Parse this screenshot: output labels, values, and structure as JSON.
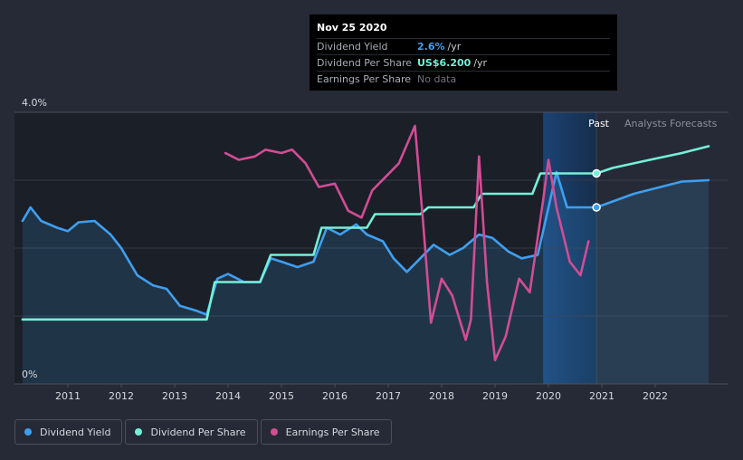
{
  "tooltip": {
    "date": "Nov 25 2020",
    "rows": [
      {
        "label": "Dividend Yield",
        "value": "2.6%",
        "unit": "/yr",
        "color": "#3f9fef"
      },
      {
        "label": "Dividend Per Share",
        "value": "US$6.200",
        "unit": "/yr",
        "color": "#74f0d8"
      },
      {
        "label": "Earnings Per Share",
        "value": "No data",
        "unit": "",
        "color": "#6f737c"
      }
    ]
  },
  "legend": [
    {
      "label": "Dividend Yield",
      "color": "#3f9fef"
    },
    {
      "label": "Dividend Per Share",
      "color": "#74f0d8"
    },
    {
      "label": "Earnings Per Share",
      "color": "#d14d94"
    }
  ],
  "chart_data": {
    "type": "line",
    "y_top_label": "4.0%",
    "y_bottom_label": "0%",
    "ylim": [
      0,
      4.0
    ],
    "xlim": [
      2010.0,
      2023.0
    ],
    "x_ticks": [
      "2011",
      "2012",
      "2013",
      "2014",
      "2015",
      "2016",
      "2017",
      "2018",
      "2019",
      "2020",
      "2021",
      "2022"
    ],
    "regions": {
      "past_label": "Past",
      "forecast_label": "Analysts Forecasts",
      "now": 2020.9
    },
    "series": [
      {
        "name": "Dividend Yield",
        "color": "#3f9fef",
        "area": true,
        "points": [
          [
            2010.15,
            2.4
          ],
          [
            2010.3,
            2.6
          ],
          [
            2010.5,
            2.4
          ],
          [
            2010.8,
            2.3
          ],
          [
            2011.0,
            2.25
          ],
          [
            2011.2,
            2.38
          ],
          [
            2011.5,
            2.4
          ],
          [
            2011.8,
            2.2
          ],
          [
            2012.0,
            2.0
          ],
          [
            2012.3,
            1.6
          ],
          [
            2012.6,
            1.45
          ],
          [
            2012.85,
            1.4
          ],
          [
            2013.1,
            1.15
          ],
          [
            2013.4,
            1.08
          ],
          [
            2013.6,
            1.02
          ],
          [
            2013.8,
            1.55
          ],
          [
            2014.0,
            1.62
          ],
          [
            2014.3,
            1.5
          ],
          [
            2014.6,
            1.5
          ],
          [
            2014.8,
            1.85
          ],
          [
            2015.0,
            1.8
          ],
          [
            2015.3,
            1.72
          ],
          [
            2015.6,
            1.8
          ],
          [
            2015.85,
            2.3
          ],
          [
            2016.1,
            2.2
          ],
          [
            2016.4,
            2.35
          ],
          [
            2016.6,
            2.2
          ],
          [
            2016.9,
            2.1
          ],
          [
            2017.1,
            1.85
          ],
          [
            2017.35,
            1.65
          ],
          [
            2017.6,
            1.85
          ],
          [
            2017.85,
            2.05
          ],
          [
            2018.15,
            1.9
          ],
          [
            2018.4,
            2.0
          ],
          [
            2018.7,
            2.2
          ],
          [
            2018.95,
            2.15
          ],
          [
            2019.25,
            1.95
          ],
          [
            2019.5,
            1.85
          ],
          [
            2019.8,
            1.9
          ],
          [
            2020.15,
            3.12
          ],
          [
            2020.35,
            2.6
          ],
          [
            2020.6,
            2.6
          ],
          [
            2020.9,
            2.6
          ],
          [
            2021.6,
            2.8
          ],
          [
            2022.0,
            2.88
          ],
          [
            2022.5,
            2.98
          ],
          [
            2023.0,
            3.0
          ]
        ]
      },
      {
        "name": "Dividend Per Share",
        "color": "#74f0d8",
        "area": false,
        "points": [
          [
            2010.15,
            0.95
          ],
          [
            2013.6,
            0.95
          ],
          [
            2013.75,
            1.5
          ],
          [
            2014.6,
            1.5
          ],
          [
            2014.8,
            1.9
          ],
          [
            2015.6,
            1.9
          ],
          [
            2015.75,
            2.3
          ],
          [
            2016.6,
            2.3
          ],
          [
            2016.75,
            2.5
          ],
          [
            2017.6,
            2.5
          ],
          [
            2017.75,
            2.6
          ],
          [
            2018.6,
            2.6
          ],
          [
            2018.75,
            2.8
          ],
          [
            2019.7,
            2.8
          ],
          [
            2019.85,
            3.1
          ],
          [
            2020.9,
            3.1
          ],
          [
            2021.2,
            3.18
          ],
          [
            2021.9,
            3.3
          ],
          [
            2022.5,
            3.4
          ],
          [
            2023.0,
            3.5
          ]
        ]
      },
      {
        "name": "Earnings Per Share",
        "color": "#d14d94",
        "area": false,
        "points": [
          [
            2013.95,
            3.4
          ],
          [
            2014.2,
            3.3
          ],
          [
            2014.5,
            3.35
          ],
          [
            2014.7,
            3.45
          ],
          [
            2015.0,
            3.4
          ],
          [
            2015.2,
            3.45
          ],
          [
            2015.45,
            3.25
          ],
          [
            2015.7,
            2.9
          ],
          [
            2016.0,
            2.95
          ],
          [
            2016.25,
            2.55
          ],
          [
            2016.5,
            2.45
          ],
          [
            2016.7,
            2.85
          ],
          [
            2016.95,
            3.05
          ],
          [
            2017.2,
            3.25
          ],
          [
            2017.5,
            3.8
          ],
          [
            2017.65,
            2.4
          ],
          [
            2017.8,
            0.9
          ],
          [
            2018.0,
            1.55
          ],
          [
            2018.2,
            1.3
          ],
          [
            2018.45,
            0.65
          ],
          [
            2018.55,
            0.95
          ],
          [
            2018.7,
            3.35
          ],
          [
            2018.85,
            1.5
          ],
          [
            2019.0,
            0.35
          ],
          [
            2019.2,
            0.7
          ],
          [
            2019.45,
            1.55
          ],
          [
            2019.65,
            1.35
          ],
          [
            2019.9,
            2.7
          ],
          [
            2020.0,
            3.3
          ],
          [
            2020.15,
            2.6
          ],
          [
            2020.4,
            1.8
          ],
          [
            2020.6,
            1.6
          ],
          [
            2020.75,
            2.1
          ]
        ]
      }
    ]
  }
}
